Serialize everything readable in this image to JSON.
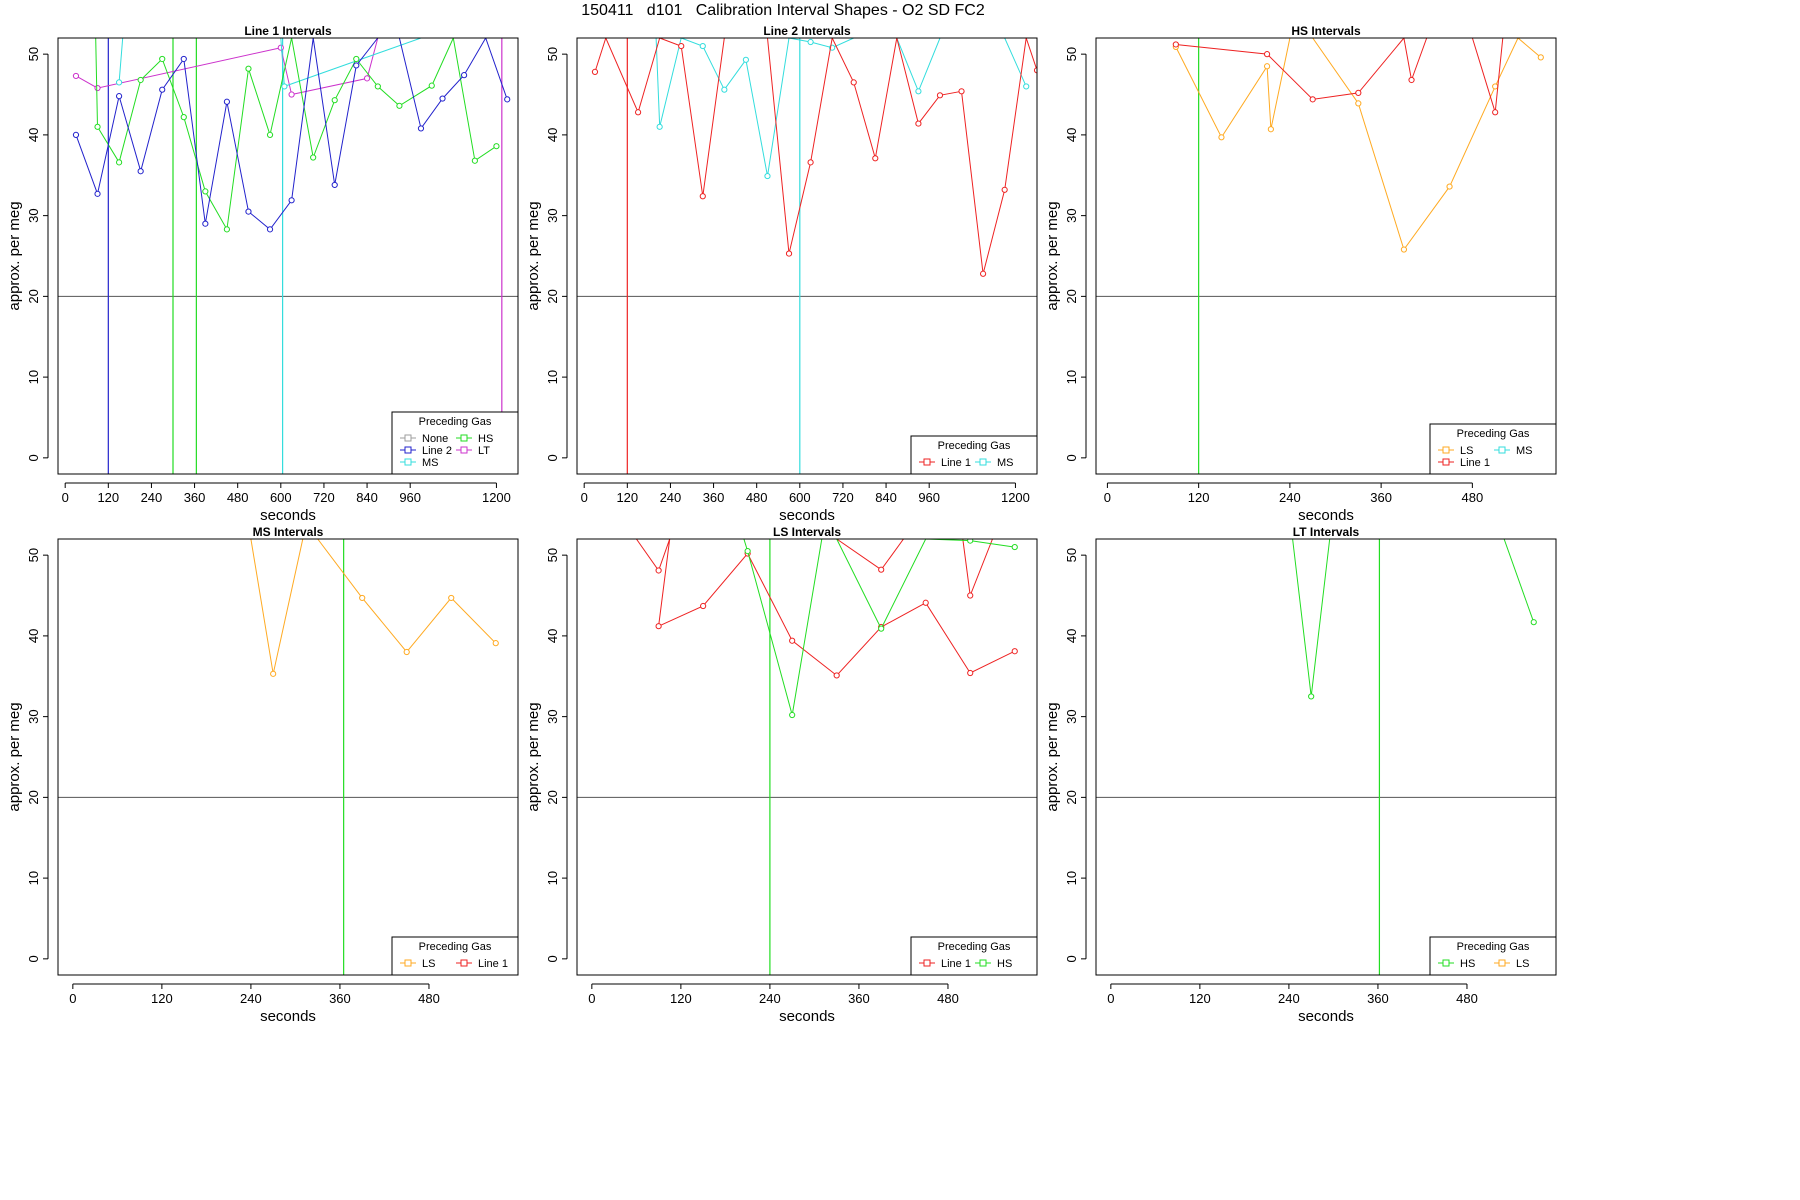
{
  "figure": {
    "title": "150411   d101   Calibration Interval Shapes - O2 SD FC2"
  },
  "colors": {
    "None": "#9e9e9e",
    "HS": "#22dd22",
    "Line 2": "#2222cc",
    "LT": "#cc33cc",
    "MS": "#33dddd",
    "Line 1": "#ee2222",
    "LS": "#ffaa22",
    "refline": "#555555"
  },
  "chart_data": [
    {
      "type": "line",
      "title": "Line 1 Intervals",
      "xlabel": "seconds",
      "ylabel": "approx. per meg",
      "xlim": [
        -20,
        1260
      ],
      "ylim": [
        -2,
        52
      ],
      "xticks": [
        0,
        120,
        240,
        360,
        480,
        600,
        720,
        840,
        960,
        1200
      ],
      "yticks": [
        0,
        10,
        20,
        30,
        40,
        50
      ],
      "hline": 20,
      "vlines": [
        {
          "x": 120,
          "series": "Line 2"
        },
        {
          "x": 300,
          "series": "HS"
        },
        {
          "x": 365,
          "series": "HS"
        },
        {
          "x": 605,
          "series": "MS"
        },
        {
          "x": 1215,
          "series": "LT"
        }
      ],
      "legend": {
        "title": "Preceding Gas",
        "position": "bottom-right",
        "entries": [
          "None",
          "HS",
          "Line 2",
          "LT",
          "MS"
        ],
        "columns": 2
      },
      "series": [
        {
          "name": "LT",
          "x": [
            30,
            90,
            600,
            630,
            840,
            870
          ],
          "y": [
            47.3,
            45.8,
            50.8,
            45.0,
            47.0,
            52
          ]
        },
        {
          "name": "MS",
          "x": [
            150,
            160,
            600,
            610,
            990,
            1020
          ],
          "y": [
            46.5,
            52,
            52,
            46.0,
            52,
            52
          ]
        },
        {
          "name": "HS",
          "x": [
            85,
            90,
            150,
            210,
            270,
            330,
            390,
            450,
            510,
            570,
            630,
            690,
            750,
            810,
            870,
            930,
            1020,
            1080,
            1140,
            1200
          ],
          "y": [
            52,
            41.0,
            36.6,
            46.8,
            49.4,
            42.2,
            33.0,
            28.3,
            48.2,
            40.0,
            52,
            37.2,
            44.3,
            49.4,
            46.0,
            43.6,
            46.1,
            52,
            36.8,
            38.6
          ]
        },
        {
          "name": "Line 2",
          "x": [
            30,
            90,
            150,
            210,
            270,
            330,
            390,
            450,
            510,
            570,
            630,
            690,
            750,
            810,
            870,
            930,
            990,
            1050,
            1110,
            1170,
            1230
          ],
          "y": [
            40.0,
            32.7,
            44.8,
            35.5,
            45.6,
            49.4,
            29.0,
            44.1,
            30.5,
            28.3,
            31.9,
            52,
            33.8,
            48.6,
            52,
            52,
            40.8,
            44.5,
            47.4,
            52,
            44.4
          ]
        }
      ]
    },
    {
      "type": "line",
      "title": "Line 2 Intervals",
      "xlabel": "seconds",
      "ylabel": "approx. per meg",
      "xlim": [
        -20,
        1260
      ],
      "ylim": [
        -2,
        52
      ],
      "xticks": [
        0,
        120,
        240,
        360,
        480,
        600,
        720,
        840,
        960,
        1200
      ],
      "yticks": [
        0,
        10,
        20,
        30,
        40,
        50
      ],
      "hline": 20,
      "vlines": [
        {
          "x": 120,
          "series": "Line 1"
        },
        {
          "x": 600,
          "series": "MS"
        }
      ],
      "legend": {
        "title": "Preceding Gas",
        "position": "bottom-right",
        "entries": [
          "Line 1",
          "MS"
        ],
        "columns": 2
      },
      "series": [
        {
          "name": "MS",
          "x": [
            200,
            210,
            270,
            330,
            390,
            450,
            510,
            570,
            630,
            690,
            750,
            810,
            870,
            930,
            990,
            1050,
            1110,
            1170,
            1230
          ],
          "y": [
            52,
            41.0,
            52,
            51.0,
            45.6,
            49.3,
            34.9,
            52,
            51.5,
            50.8,
            52,
            52,
            52,
            45.4,
            52,
            52,
            52,
            52,
            46.0
          ]
        },
        {
          "name": "Line 1",
          "x": [
            30,
            60,
            150,
            210,
            270,
            330,
            390,
            450,
            510,
            570,
            630,
            690,
            750,
            810,
            870,
            930,
            990,
            1050,
            1110,
            1170,
            1230,
            1260
          ],
          "y": [
            47.8,
            52,
            42.8,
            52,
            51.0,
            32.4,
            52,
            52,
            52,
            25.3,
            36.6,
            52,
            46.5,
            37.1,
            52,
            41.4,
            44.9,
            45.4,
            22.8,
            33.2,
            52,
            48.0
          ]
        }
      ]
    },
    {
      "type": "line",
      "title": "HS Intervals",
      "xlabel": "seconds",
      "ylabel": "approx. per meg",
      "xlim": [
        -15,
        590
      ],
      "ylim": [
        -2,
        52
      ],
      "xticks": [
        0,
        120,
        240,
        360,
        480
      ],
      "yticks": [
        0,
        10,
        20,
        30,
        40,
        50
      ],
      "hline": 20,
      "vlines": [
        {
          "x": 120,
          "series": "HS"
        }
      ],
      "legend": {
        "title": "Preceding Gas",
        "position": "bottom-right",
        "entries": [
          "LS",
          "MS",
          "Line 1"
        ],
        "columns": 2
      },
      "series": [
        {
          "name": "LS",
          "x": [
            90,
            150,
            210,
            215,
            240,
            250,
            270,
            330,
            390,
            450,
            510,
            540,
            570
          ],
          "y": [
            50.9,
            39.7,
            48.5,
            40.7,
            52,
            52,
            52,
            43.9,
            25.8,
            33.6,
            46.0,
            52,
            49.6
          ]
        },
        {
          "name": "Line 1",
          "x": [
            90,
            210,
            270,
            330,
            390,
            400,
            420,
            480,
            510,
            520
          ],
          "y": [
            51.2,
            50.0,
            44.4,
            45.2,
            52,
            46.8,
            52,
            52,
            42.8,
            52
          ]
        }
      ]
    },
    {
      "type": "line",
      "title": "MS Intervals",
      "xlabel": "seconds",
      "ylabel": "approx. per meg",
      "xlim": [
        -20,
        600
      ],
      "ylim": [
        -2,
        52
      ],
      "xticks": [
        0,
        120,
        240,
        360,
        480
      ],
      "yticks": [
        0,
        10,
        20,
        30,
        40,
        50
      ],
      "hline": 20,
      "vlines": [
        {
          "x": 365,
          "series": "HS"
        }
      ],
      "legend": {
        "title": "Preceding Gas",
        "position": "bottom-right",
        "entries": [
          "LS",
          "Line 1"
        ],
        "columns": 2
      },
      "series": [
        {
          "name": "LS",
          "x": [
            240,
            270,
            310,
            330,
            390,
            450,
            510,
            570
          ],
          "y": [
            52,
            35.3,
            52,
            52,
            44.7,
            38.0,
            44.7,
            39.1
          ]
        }
      ]
    },
    {
      "type": "line",
      "title": "LS Intervals",
      "xlabel": "seconds",
      "ylabel": "approx. per meg",
      "xlim": [
        -20,
        600
      ],
      "ylim": [
        -2,
        52
      ],
      "xticks": [
        0,
        120,
        240,
        360,
        480
      ],
      "yticks": [
        0,
        10,
        20,
        30,
        40,
        50
      ],
      "hline": 20,
      "vlines": [
        {
          "x": 240,
          "series": "HS"
        }
      ],
      "legend": {
        "title": "Preceding Gas",
        "position": "bottom-right",
        "entries": [
          "Line 1",
          "HS"
        ],
        "columns": 2
      },
      "series": [
        {
          "name": "Line 1",
          "x": [
            60,
            90,
            105,
            90,
            150,
            210,
            270,
            330,
            390,
            450,
            510,
            570
          ],
          "y": [
            52,
            48.1,
            52,
            41.2,
            43.7,
            50.2,
            39.4,
            35.1,
            41.1,
            44.1,
            35.4,
            38.1
          ]
        },
        {
          "name": "Line 1",
          "x": [
            330,
            390,
            420,
            450,
            500,
            510,
            540
          ],
          "y": [
            52,
            48.2,
            52,
            52,
            52,
            45.0,
            52
          ]
        },
        {
          "name": "HS",
          "x": [
            205,
            210,
            270,
            310,
            330,
            390,
            450,
            510,
            570
          ],
          "y": [
            52,
            50.5,
            30.2,
            52,
            52,
            40.9,
            52,
            51.8,
            51.0
          ]
        }
      ]
    },
    {
      "type": "line",
      "title": "LT Intervals",
      "xlabel": "seconds",
      "ylabel": "approx. per meg",
      "xlim": [
        -20,
        600
      ],
      "ylim": [
        -2,
        52
      ],
      "xticks": [
        0,
        120,
        240,
        360,
        480
      ],
      "yticks": [
        0,
        10,
        20,
        30,
        40,
        50
      ],
      "hline": 20,
      "vlines": [
        {
          "x": 362,
          "series": "HS"
        }
      ],
      "legend": {
        "title": "Preceding Gas",
        "position": "bottom-right",
        "entries": [
          "HS",
          "LS"
        ],
        "columns": 2
      },
      "series": [
        {
          "name": "HS",
          "x": [
            245,
            270,
            295
          ],
          "y": [
            52,
            32.5,
            52
          ]
        },
        {
          "name": "HS",
          "x": [
            530,
            570
          ],
          "y": [
            52,
            41.7
          ]
        }
      ]
    }
  ]
}
